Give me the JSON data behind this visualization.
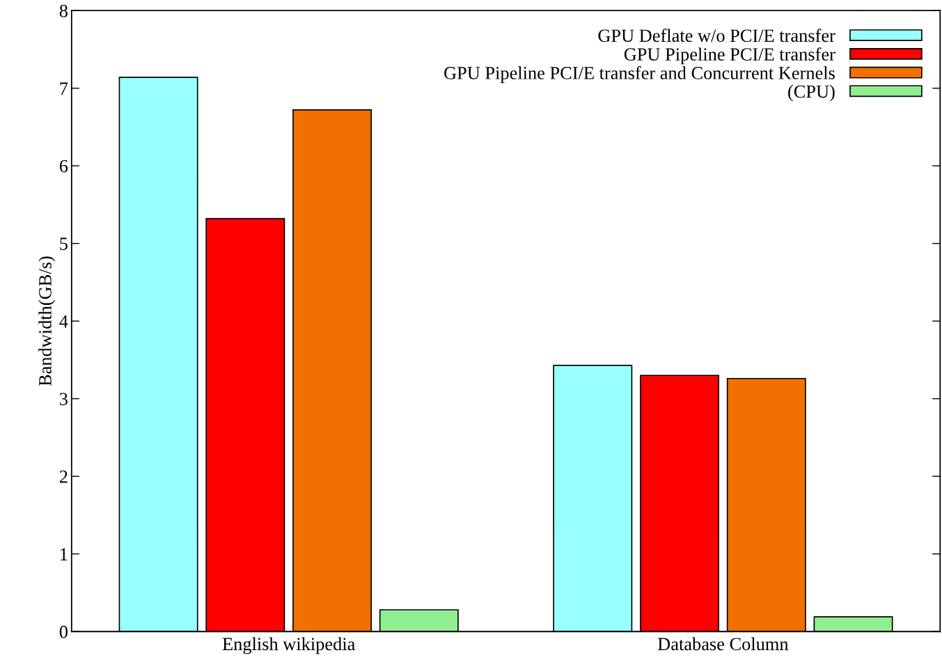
{
  "chart_data": {
    "type": "bar",
    "ylabel": "Bandwidth(GB/s)",
    "categories": [
      "English wikipedia",
      "Database Column"
    ],
    "series": [
      {
        "name": "GPU Deflate w/o PCI/E transfer",
        "color": "#99ffff",
        "values": [
          7.14,
          3.43
        ]
      },
      {
        "name": "GPU Pipeline PCI/E transfer",
        "color": "#ff0000",
        "values": [
          5.32,
          3.3
        ]
      },
      {
        "name": "GPU Pipeline PCI/E transfer and Concurrent Kernels",
        "color": "#f07000",
        "values": [
          6.72,
          3.26
        ]
      },
      {
        "name": "(CPU)",
        "color": "#90ee90",
        "values": [
          0.28,
          0.19
        ]
      }
    ],
    "ylim": [
      0,
      8
    ],
    "yticks": [
      0,
      1,
      2,
      3,
      4,
      5,
      6,
      7,
      8
    ],
    "grid": false,
    "legend": "top right"
  }
}
